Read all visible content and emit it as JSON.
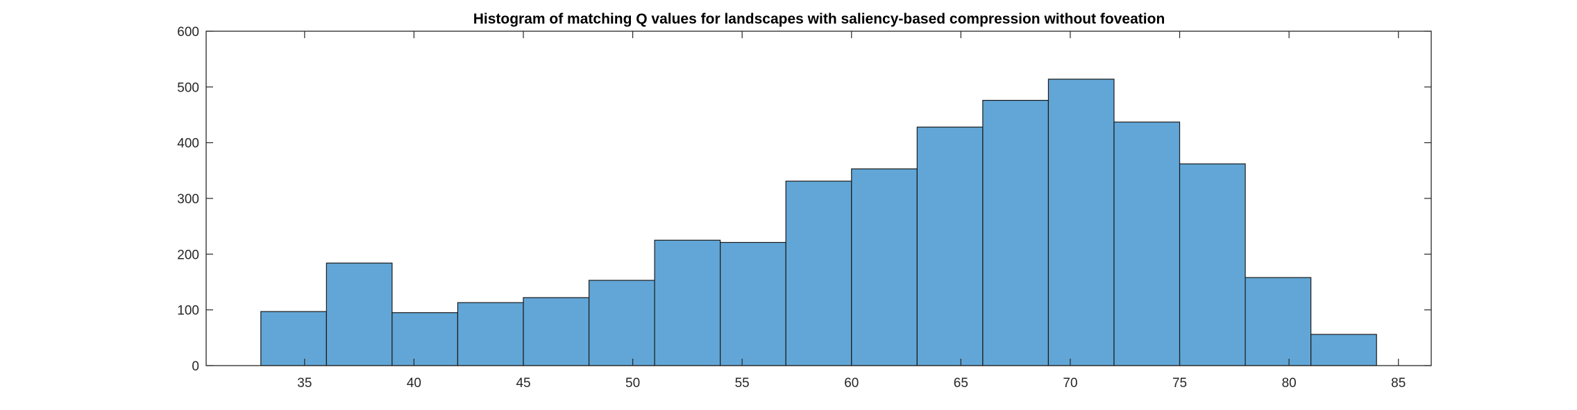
{
  "chart_data": {
    "type": "bar",
    "title": "Histogram of matching Q values for landscapes with saliency-based compression without foveation",
    "xlabel": "",
    "ylabel": "",
    "bin_width": 3,
    "bins": [
      {
        "x0": 33,
        "x1": 36,
        "count": 97
      },
      {
        "x0": 36,
        "x1": 39,
        "count": 184
      },
      {
        "x0": 39,
        "x1": 42,
        "count": 95
      },
      {
        "x0": 42,
        "x1": 45,
        "count": 113
      },
      {
        "x0": 45,
        "x1": 48,
        "count": 122
      },
      {
        "x0": 48,
        "x1": 51,
        "count": 153
      },
      {
        "x0": 51,
        "x1": 54,
        "count": 225
      },
      {
        "x0": 54,
        "x1": 57,
        "count": 221
      },
      {
        "x0": 57,
        "x1": 60,
        "count": 331
      },
      {
        "x0": 60,
        "x1": 63,
        "count": 353
      },
      {
        "x0": 63,
        "x1": 66,
        "count": 428
      },
      {
        "x0": 66,
        "x1": 69,
        "count": 476
      },
      {
        "x0": 69,
        "x1": 72,
        "count": 514
      },
      {
        "x0": 72,
        "x1": 75,
        "count": 437
      },
      {
        "x0": 75,
        "x1": 78,
        "count": 362
      },
      {
        "x0": 78,
        "x1": 81,
        "count": 158
      },
      {
        "x0": 81,
        "x1": 84,
        "count": 56
      }
    ],
    "xlim": [
      30.5,
      86.5
    ],
    "ylim": [
      0,
      600
    ],
    "xticks": [
      "35",
      "40",
      "45",
      "50",
      "55",
      "60",
      "65",
      "70",
      "75",
      "80",
      "85"
    ],
    "yticks": [
      "0",
      "100",
      "200",
      "300",
      "400",
      "500",
      "600"
    ],
    "grid": false,
    "legend": "none",
    "colors": {
      "bar_fill": "#61a6d6",
      "bar_edge": "#1a1a1a",
      "axis": "#262626"
    }
  }
}
